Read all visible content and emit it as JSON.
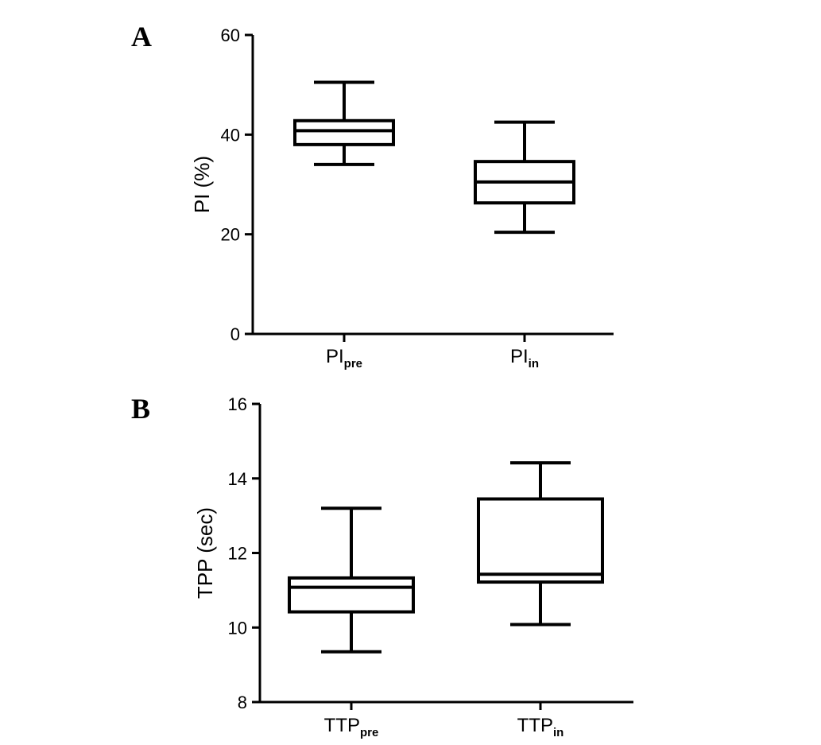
{
  "chart_data": [
    {
      "panel": "A",
      "type": "box",
      "title": "",
      "xlabel": "",
      "ylabel": "PI (%)",
      "ylim": [
        0,
        60
      ],
      "yticks": [
        0,
        20,
        40,
        60
      ],
      "grid": false,
      "categories": [
        {
          "main": "PI",
          "sub": "pre"
        },
        {
          "main": "PI",
          "sub": "in"
        }
      ],
      "boxes": [
        {
          "min": 34,
          "q1": 38,
          "median": 40.8,
          "q3": 42.8,
          "max": 50.5
        },
        {
          "min": 20.4,
          "q1": 26.3,
          "median": 30.5,
          "q3": 34.6,
          "max": 42.5
        }
      ]
    },
    {
      "panel": "B",
      "type": "box",
      "title": "",
      "xlabel": "",
      "ylabel": "TPP (sec)",
      "ylim": [
        8,
        16
      ],
      "yticks": [
        8,
        10,
        12,
        14,
        16
      ],
      "grid": false,
      "categories": [
        {
          "main": "TTP",
          "sub": "pre"
        },
        {
          "main": "TTP",
          "sub": "in"
        }
      ],
      "boxes": [
        {
          "min": 9.35,
          "q1": 10.42,
          "median": 11.08,
          "q3": 11.33,
          "max": 13.2
        },
        {
          "min": 10.08,
          "q1": 11.22,
          "median": 11.43,
          "q3": 13.45,
          "max": 14.42
        }
      ]
    }
  ]
}
